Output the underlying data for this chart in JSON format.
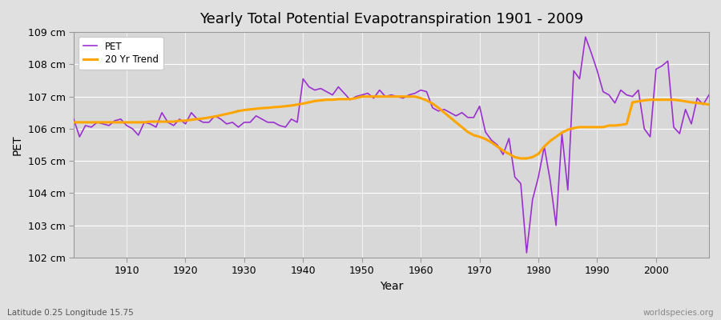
{
  "title": "Yearly Total Potential Evapotranspiration 1901 - 2009",
  "xlabel": "Year",
  "ylabel": "PET",
  "subtitle": "Latitude 0.25 Longitude 15.75",
  "watermark": "worldspecies.org",
  "pet_color": "#9B30D0",
  "trend_color": "#FFA500",
  "bg_color": "#E0E0E0",
  "plot_bg_color": "#D8D8D8",
  "ylim": [
    102,
    109
  ],
  "yticks": [
    102,
    103,
    104,
    105,
    106,
    107,
    108,
    109
  ],
  "ytick_labels": [
    "102 cm",
    "103 cm",
    "104 cm",
    "105 cm",
    "106 cm",
    "107 cm",
    "108 cm",
    "109 cm"
  ],
  "years": [
    1901,
    1902,
    1903,
    1904,
    1905,
    1906,
    1907,
    1908,
    1909,
    1910,
    1911,
    1912,
    1913,
    1914,
    1915,
    1916,
    1917,
    1918,
    1919,
    1920,
    1921,
    1922,
    1923,
    1924,
    1925,
    1926,
    1927,
    1928,
    1929,
    1930,
    1931,
    1932,
    1933,
    1934,
    1935,
    1936,
    1937,
    1938,
    1939,
    1940,
    1941,
    1942,
    1943,
    1944,
    1945,
    1946,
    1947,
    1948,
    1949,
    1950,
    1951,
    1952,
    1953,
    1954,
    1955,
    1956,
    1957,
    1958,
    1959,
    1960,
    1961,
    1962,
    1963,
    1964,
    1965,
    1966,
    1967,
    1968,
    1969,
    1970,
    1971,
    1972,
    1973,
    1974,
    1975,
    1976,
    1977,
    1978,
    1979,
    1980,
    1981,
    1982,
    1983,
    1984,
    1985,
    1986,
    1987,
    1988,
    1989,
    1990,
    1991,
    1992,
    1993,
    1994,
    1995,
    1996,
    1997,
    1998,
    1999,
    2000,
    2001,
    2002,
    2003,
    2004,
    2005,
    2006,
    2007,
    2008,
    2009
  ],
  "pet_values": [
    106.3,
    105.75,
    106.1,
    106.05,
    106.2,
    106.15,
    106.1,
    106.25,
    106.3,
    106.1,
    106.0,
    105.8,
    106.2,
    106.15,
    106.05,
    106.5,
    106.2,
    106.1,
    106.3,
    106.15,
    106.5,
    106.3,
    106.2,
    106.2,
    106.4,
    106.3,
    106.15,
    106.2,
    106.05,
    106.2,
    106.2,
    106.4,
    106.3,
    106.2,
    106.2,
    106.1,
    106.05,
    106.3,
    106.2,
    107.55,
    107.3,
    107.2,
    107.25,
    107.15,
    107.05,
    107.3,
    107.1,
    106.9,
    107.0,
    107.05,
    107.1,
    106.95,
    107.2,
    107.0,
    107.05,
    107.0,
    106.95,
    107.05,
    107.1,
    107.2,
    107.15,
    106.65,
    106.55,
    106.6,
    106.5,
    106.4,
    106.5,
    106.35,
    106.35,
    106.7,
    105.9,
    105.65,
    105.5,
    105.2,
    105.7,
    104.5,
    104.3,
    102.15,
    103.8,
    104.5,
    105.45,
    104.4,
    103.0,
    105.85,
    104.1,
    107.8,
    107.55,
    108.85,
    108.35,
    107.8,
    107.15,
    107.05,
    106.8,
    107.2,
    107.05,
    107.0,
    107.2,
    106.0,
    105.75,
    107.85,
    107.95,
    108.1,
    106.05,
    105.85,
    106.6,
    106.15,
    106.95,
    106.75,
    107.05
  ],
  "trend_values": [
    106.2,
    106.2,
    106.2,
    106.2,
    106.2,
    106.2,
    106.2,
    106.2,
    106.2,
    106.2,
    106.2,
    106.2,
    106.2,
    106.22,
    106.22,
    106.22,
    106.22,
    106.22,
    106.25,
    106.25,
    106.28,
    106.3,
    106.32,
    106.35,
    106.38,
    106.42,
    106.46,
    106.5,
    106.55,
    106.58,
    106.6,
    106.62,
    106.64,
    106.65,
    106.67,
    106.68,
    106.7,
    106.72,
    106.75,
    106.78,
    106.82,
    106.86,
    106.88,
    106.9,
    106.9,
    106.92,
    106.92,
    106.92,
    106.95,
    107.0,
    107.0,
    107.0,
    107.0,
    107.0,
    107.0,
    107.0,
    107.0,
    107.0,
    107.0,
    106.95,
    106.88,
    106.78,
    106.65,
    106.5,
    106.35,
    106.2,
    106.05,
    105.9,
    105.8,
    105.75,
    105.68,
    105.58,
    105.45,
    105.32,
    105.22,
    105.12,
    105.08,
    105.08,
    105.12,
    105.22,
    105.45,
    105.62,
    105.75,
    105.88,
    105.97,
    106.02,
    106.05,
    106.05,
    106.05,
    106.05,
    106.05,
    106.1,
    106.1,
    106.12,
    106.15,
    106.82,
    106.85,
    106.88,
    106.9,
    106.9,
    106.9,
    106.9,
    106.9,
    106.88,
    106.85,
    106.82,
    106.8,
    106.78,
    106.75
  ]
}
